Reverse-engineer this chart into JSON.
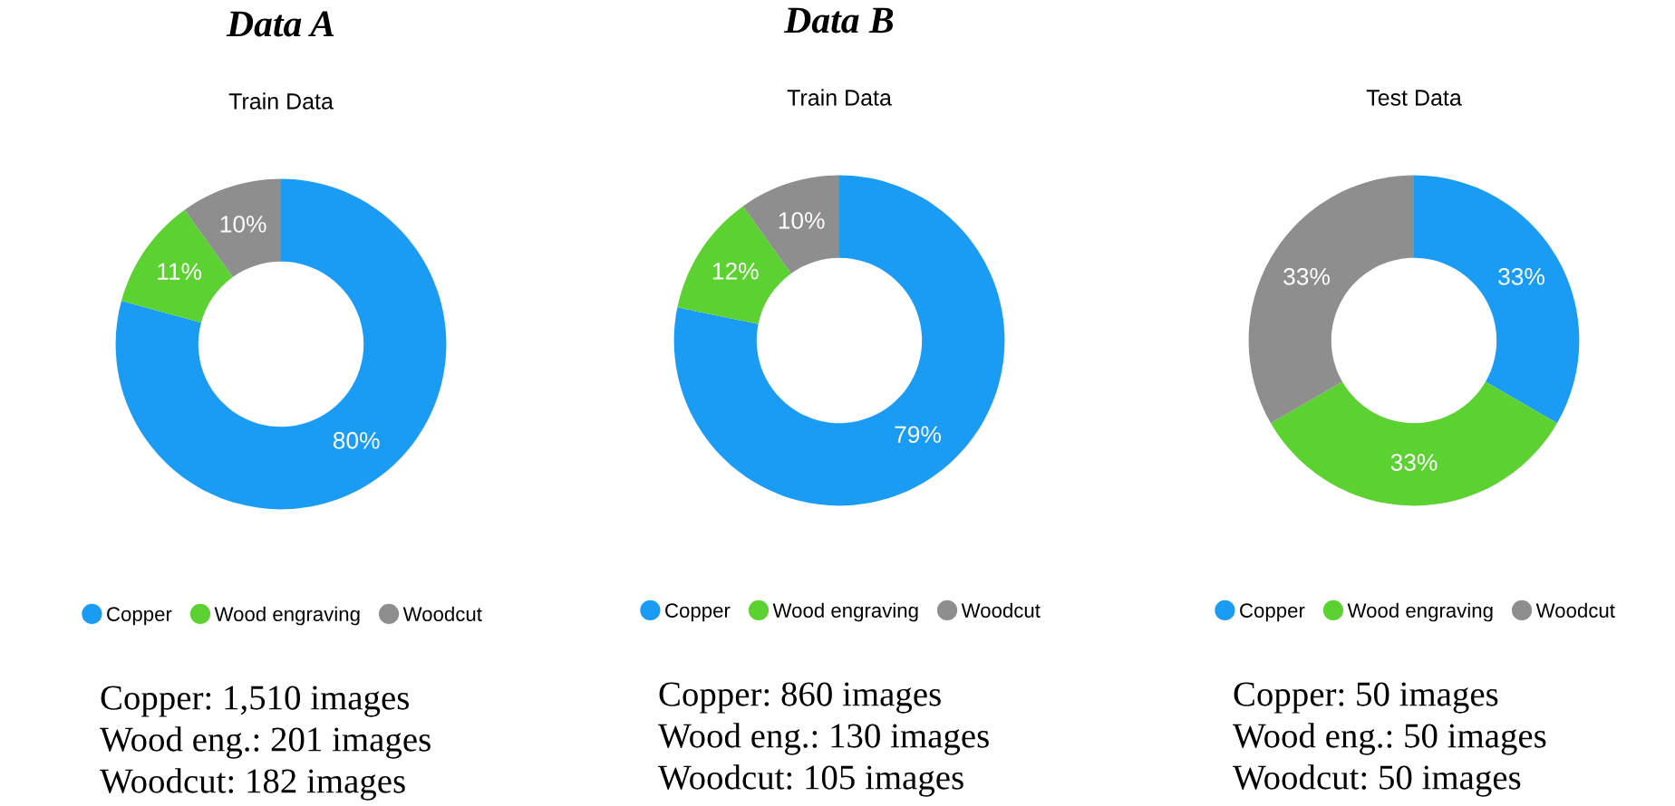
{
  "chart_data": [
    {
      "type": "donut",
      "title": "Data A",
      "subtitle": "Train Data",
      "categories": [
        "Copper",
        "Wood engraving",
        "Woodcut"
      ],
      "values": [
        80,
        11,
        10
      ],
      "value_labels": [
        "80%",
        "11%",
        "10%"
      ],
      "colors": [
        "#1a9cf5",
        "#5cd132",
        "#8e8e8e"
      ],
      "legend": "bottom",
      "annotations": [
        "Copper: 1,510 images",
        "Wood eng.: 201 images",
        "Woodcut: 182 images"
      ]
    },
    {
      "type": "donut",
      "title": "Data B",
      "subtitle": "Train Data",
      "categories": [
        "Copper",
        "Wood engraving",
        "Woodcut"
      ],
      "values": [
        79,
        12,
        10
      ],
      "value_labels": [
        "79%",
        "12%",
        "10%"
      ],
      "colors": [
        "#1a9cf5",
        "#5cd132",
        "#8e8e8e"
      ],
      "legend": "bottom",
      "annotations": [
        "Copper: 860 images",
        "Wood eng.: 130 images",
        "Woodcut: 105 images"
      ]
    },
    {
      "type": "donut",
      "subtitle": "Test Data",
      "categories": [
        "Copper",
        "Wood engraving",
        "Woodcut"
      ],
      "values": [
        33,
        33,
        33
      ],
      "value_labels": [
        "33%",
        "33%",
        "33%"
      ],
      "colors": [
        "#1a9cf5",
        "#5cd132",
        "#8e8e8e"
      ],
      "legend": "bottom",
      "annotations": [
        "Copper: 50 images",
        "Wood eng.: 50 images",
        "Woodcut: 50 images"
      ]
    }
  ]
}
